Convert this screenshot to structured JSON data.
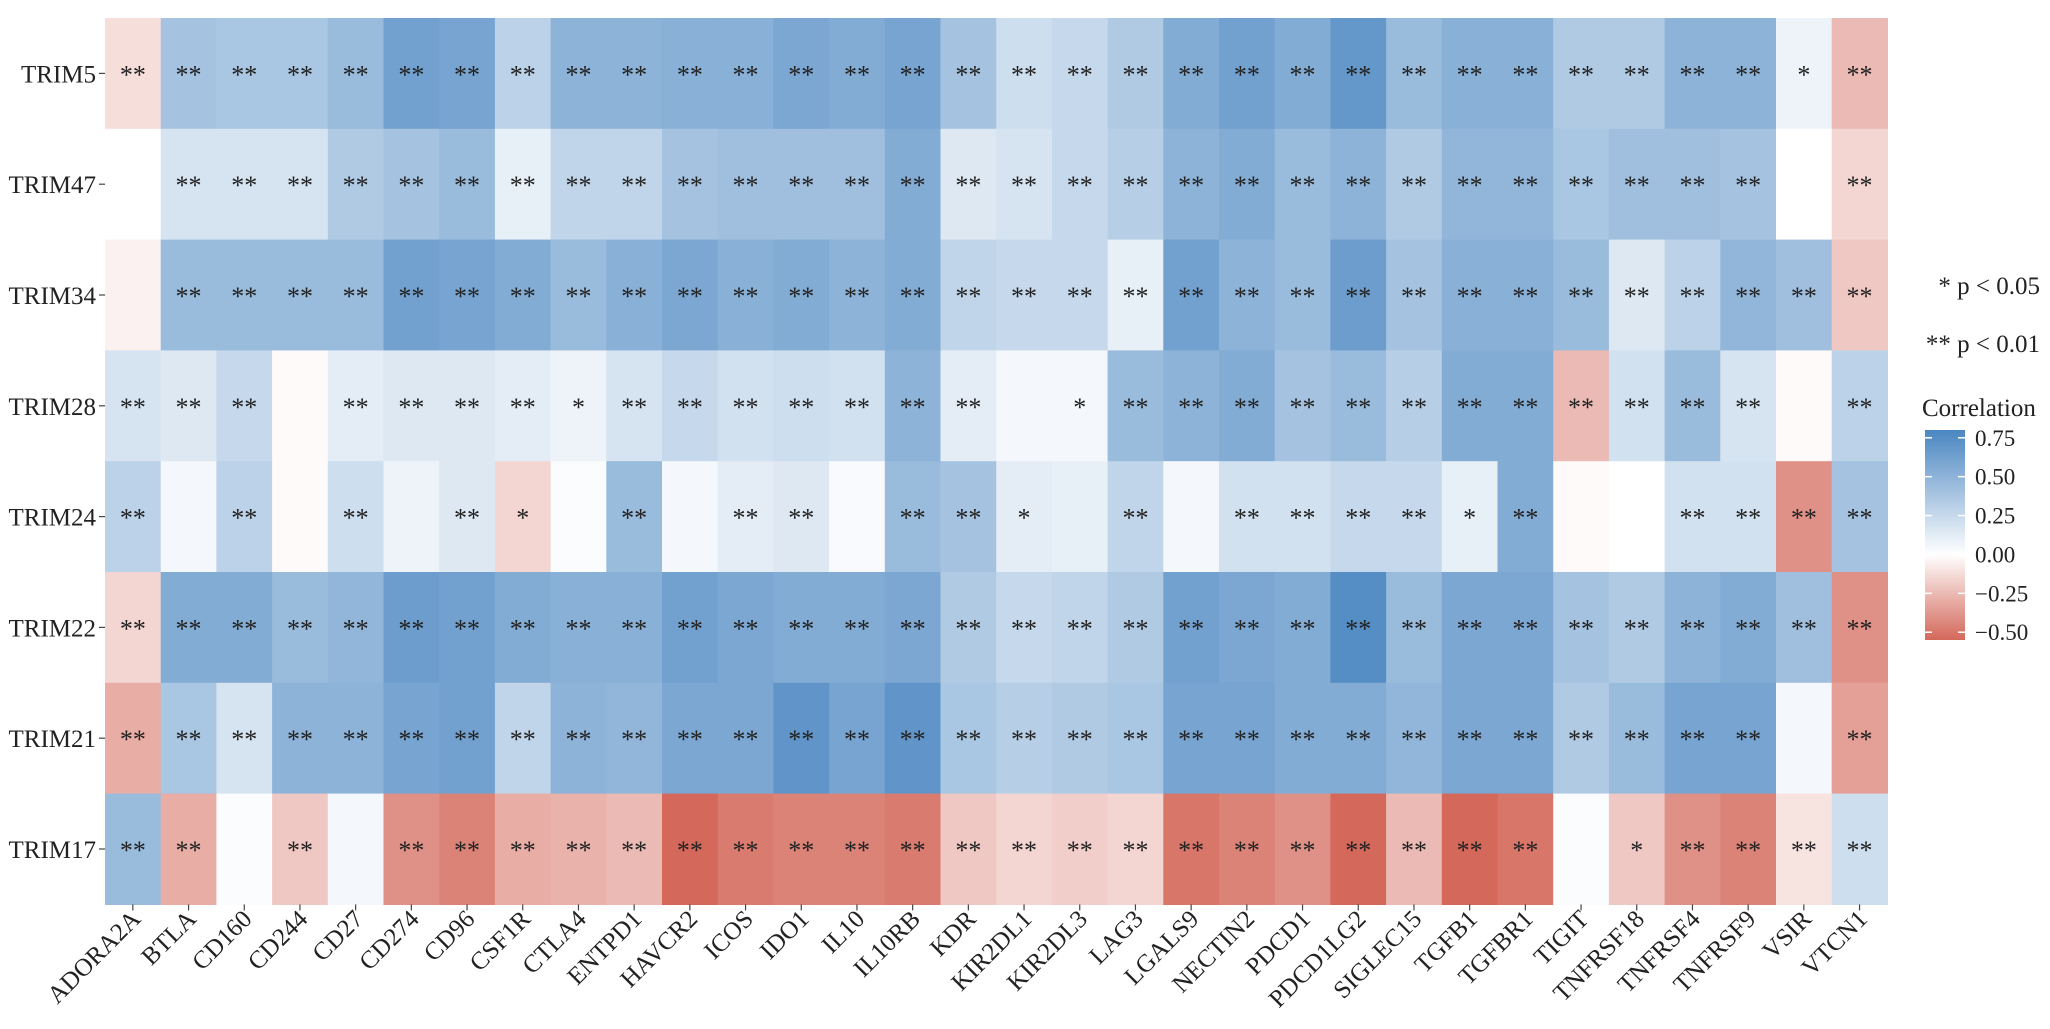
{
  "chart_data": {
    "type": "heatmap",
    "x_labels": [
      "ADORA2A",
      "BTLA",
      "CD160",
      "CD244",
      "CD27",
      "CD274",
      "CD96",
      "CSF1R",
      "CTLA4",
      "ENTPD1",
      "HAVCR2",
      "ICOS",
      "IDO1",
      "IL10",
      "IL10RB",
      "KDR",
      "KIR2DL1",
      "KIR2DL3",
      "LAG3",
      "LGALS9",
      "NECTIN2",
      "PDCD1",
      "PDCD1LG2",
      "SIGLEC15",
      "TGFB1",
      "TGFBR1",
      "TIGIT",
      "TNFRSF18",
      "TNFRSF4",
      "TNFRSF9",
      "VSIR",
      "VTCN1"
    ],
    "y_labels": [
      "TRIM5",
      "TRIM47",
      "TRIM34",
      "TRIM28",
      "TRIM24",
      "TRIM22",
      "TRIM21",
      "TRIM17"
    ],
    "values": [
      [
        -0.12,
        0.4,
        0.38,
        0.38,
        0.45,
        0.62,
        0.6,
        0.3,
        0.5,
        0.5,
        0.52,
        0.52,
        0.58,
        0.55,
        0.6,
        0.4,
        0.22,
        0.25,
        0.35,
        0.55,
        0.62,
        0.55,
        0.68,
        0.45,
        0.52,
        0.52,
        0.35,
        0.35,
        0.5,
        0.5,
        0.08,
        -0.25
      ],
      [
        0.0,
        0.18,
        0.18,
        0.18,
        0.35,
        0.4,
        0.45,
        0.1,
        0.28,
        0.28,
        0.4,
        0.42,
        0.42,
        0.42,
        0.55,
        0.15,
        0.18,
        0.25,
        0.32,
        0.5,
        0.55,
        0.45,
        0.5,
        0.35,
        0.48,
        0.48,
        0.38,
        0.42,
        0.42,
        0.4,
        0.0,
        -0.15
      ],
      [
        -0.05,
        0.45,
        0.45,
        0.45,
        0.45,
        0.62,
        0.6,
        0.55,
        0.45,
        0.52,
        0.58,
        0.52,
        0.55,
        0.5,
        0.55,
        0.28,
        0.25,
        0.25,
        0.1,
        0.62,
        0.5,
        0.45,
        0.65,
        0.4,
        0.52,
        0.52,
        0.45,
        0.15,
        0.3,
        0.48,
        0.42,
        -0.2
      ],
      [
        0.18,
        0.15,
        0.25,
        -0.02,
        0.12,
        0.15,
        0.15,
        0.12,
        0.08,
        0.18,
        0.25,
        0.2,
        0.22,
        0.2,
        0.5,
        0.12,
        0.05,
        0.05,
        0.45,
        0.5,
        0.55,
        0.4,
        0.45,
        0.32,
        0.55,
        0.55,
        -0.25,
        0.2,
        0.45,
        0.18,
        -0.02,
        0.3
      ],
      [
        0.3,
        0.05,
        0.3,
        -0.02,
        0.22,
        0.08,
        0.15,
        -0.15,
        0.02,
        0.45,
        0.05,
        0.12,
        0.15,
        0.03,
        0.45,
        0.4,
        0.12,
        0.1,
        0.28,
        0.05,
        0.2,
        0.2,
        0.25,
        0.25,
        0.1,
        0.55,
        -0.02,
        0.0,
        0.2,
        0.2,
        -0.4,
        0.4
      ],
      [
        -0.15,
        0.55,
        0.55,
        0.45,
        0.48,
        0.65,
        0.62,
        0.55,
        0.52,
        0.52,
        0.62,
        0.58,
        0.55,
        0.55,
        0.58,
        0.35,
        0.25,
        0.28,
        0.35,
        0.62,
        0.58,
        0.55,
        0.75,
        0.45,
        0.58,
        0.58,
        0.4,
        0.35,
        0.5,
        0.55,
        0.42,
        -0.4
      ],
      [
        -0.3,
        0.38,
        0.18,
        0.5,
        0.5,
        0.6,
        0.62,
        0.28,
        0.5,
        0.48,
        0.58,
        0.58,
        0.7,
        0.6,
        0.7,
        0.38,
        0.32,
        0.35,
        0.38,
        0.6,
        0.6,
        0.55,
        0.55,
        0.48,
        0.58,
        0.58,
        0.35,
        0.45,
        0.6,
        0.6,
        0.05,
        -0.35
      ],
      [
        0.45,
        -0.3,
        0.02,
        -0.2,
        0.05,
        -0.4,
        -0.45,
        -0.3,
        -0.28,
        -0.25,
        -0.55,
        -0.48,
        -0.45,
        -0.45,
        -0.48,
        -0.2,
        -0.15,
        -0.18,
        -0.15,
        -0.5,
        -0.45,
        -0.4,
        -0.6,
        -0.25,
        -0.55,
        -0.5,
        0.02,
        -0.2,
        -0.4,
        -0.45,
        -0.1,
        0.22
      ]
    ],
    "significance": [
      [
        "**",
        "**",
        "**",
        "**",
        "**",
        "**",
        "**",
        "**",
        "**",
        "**",
        "**",
        "**",
        "**",
        "**",
        "**",
        "**",
        "**",
        "**",
        "**",
        "**",
        "**",
        "**",
        "**",
        "**",
        "**",
        "**",
        "**",
        "**",
        "**",
        "**",
        "*",
        "**"
      ],
      [
        "",
        "**",
        "**",
        "**",
        "**",
        "**",
        "**",
        "**",
        "**",
        "**",
        "**",
        "**",
        "**",
        "**",
        "**",
        "**",
        "**",
        "**",
        "**",
        "**",
        "**",
        "**",
        "**",
        "**",
        "**",
        "**",
        "**",
        "**",
        "**",
        "**",
        "",
        "**"
      ],
      [
        "",
        "**",
        "**",
        "**",
        "**",
        "**",
        "**",
        "**",
        "**",
        "**",
        "**",
        "**",
        "**",
        "**",
        "**",
        "**",
        "**",
        "**",
        "**",
        "**",
        "**",
        "**",
        "**",
        "**",
        "**",
        "**",
        "**",
        "**",
        "**",
        "**",
        "**",
        "**"
      ],
      [
        "**",
        "**",
        "**",
        "",
        "**",
        "**",
        "**",
        "**",
        "*",
        "**",
        "**",
        "**",
        "**",
        "**",
        "**",
        "**",
        "",
        "*",
        "**",
        "**",
        "**",
        "**",
        "**",
        "**",
        "**",
        "**",
        "**",
        "**",
        "**",
        "**",
        "",
        "**"
      ],
      [
        "**",
        "",
        "**",
        "",
        "**",
        "",
        "**",
        "*",
        "",
        "**",
        "",
        "**",
        "**",
        "",
        "**",
        "**",
        "*",
        "",
        "**",
        "",
        "**",
        "**",
        "**",
        "**",
        "*",
        "**",
        "",
        "",
        "**",
        "**",
        "**",
        "**"
      ],
      [
        "**",
        "**",
        "**",
        "**",
        "**",
        "**",
        "**",
        "**",
        "**",
        "**",
        "**",
        "**",
        "**",
        "**",
        "**",
        "**",
        "**",
        "**",
        "**",
        "**",
        "**",
        "**",
        "**",
        "**",
        "**",
        "**",
        "**",
        "**",
        "**",
        "**",
        "**",
        "**"
      ],
      [
        "**",
        "**",
        "**",
        "**",
        "**",
        "**",
        "**",
        "**",
        "**",
        "**",
        "**",
        "**",
        "**",
        "**",
        "**",
        "**",
        "**",
        "**",
        "**",
        "**",
        "**",
        "**",
        "**",
        "**",
        "**",
        "**",
        "**",
        "**",
        "**",
        "**",
        "",
        "**"
      ],
      [
        "**",
        "**",
        "",
        "**",
        "",
        "**",
        "**",
        "**",
        "**",
        "**",
        "**",
        "**",
        "**",
        "**",
        "**",
        "**",
        "**",
        "**",
        "**",
        "**",
        "**",
        "**",
        "**",
        "**",
        "**",
        "**",
        "",
        "*",
        "**",
        "**",
        "**",
        "**"
      ]
    ],
    "significance_legend": [
      "* p < 0.05",
      "** p < 0.01"
    ],
    "colorbar": {
      "title": "Correlation",
      "ticks": [
        0.75,
        0.5,
        0.25,
        0.0,
        -0.25,
        -0.5
      ],
      "tick_labels": [
        "0.75",
        "0.50",
        "0.25",
        "0.00",
        "−0.25",
        "−0.50"
      ],
      "range": [
        -0.55,
        0.8
      ],
      "colors": {
        "positive": "#4a86c1",
        "zero": "#ffffff",
        "negative": "#d4685a"
      }
    },
    "legend_position": "right"
  }
}
